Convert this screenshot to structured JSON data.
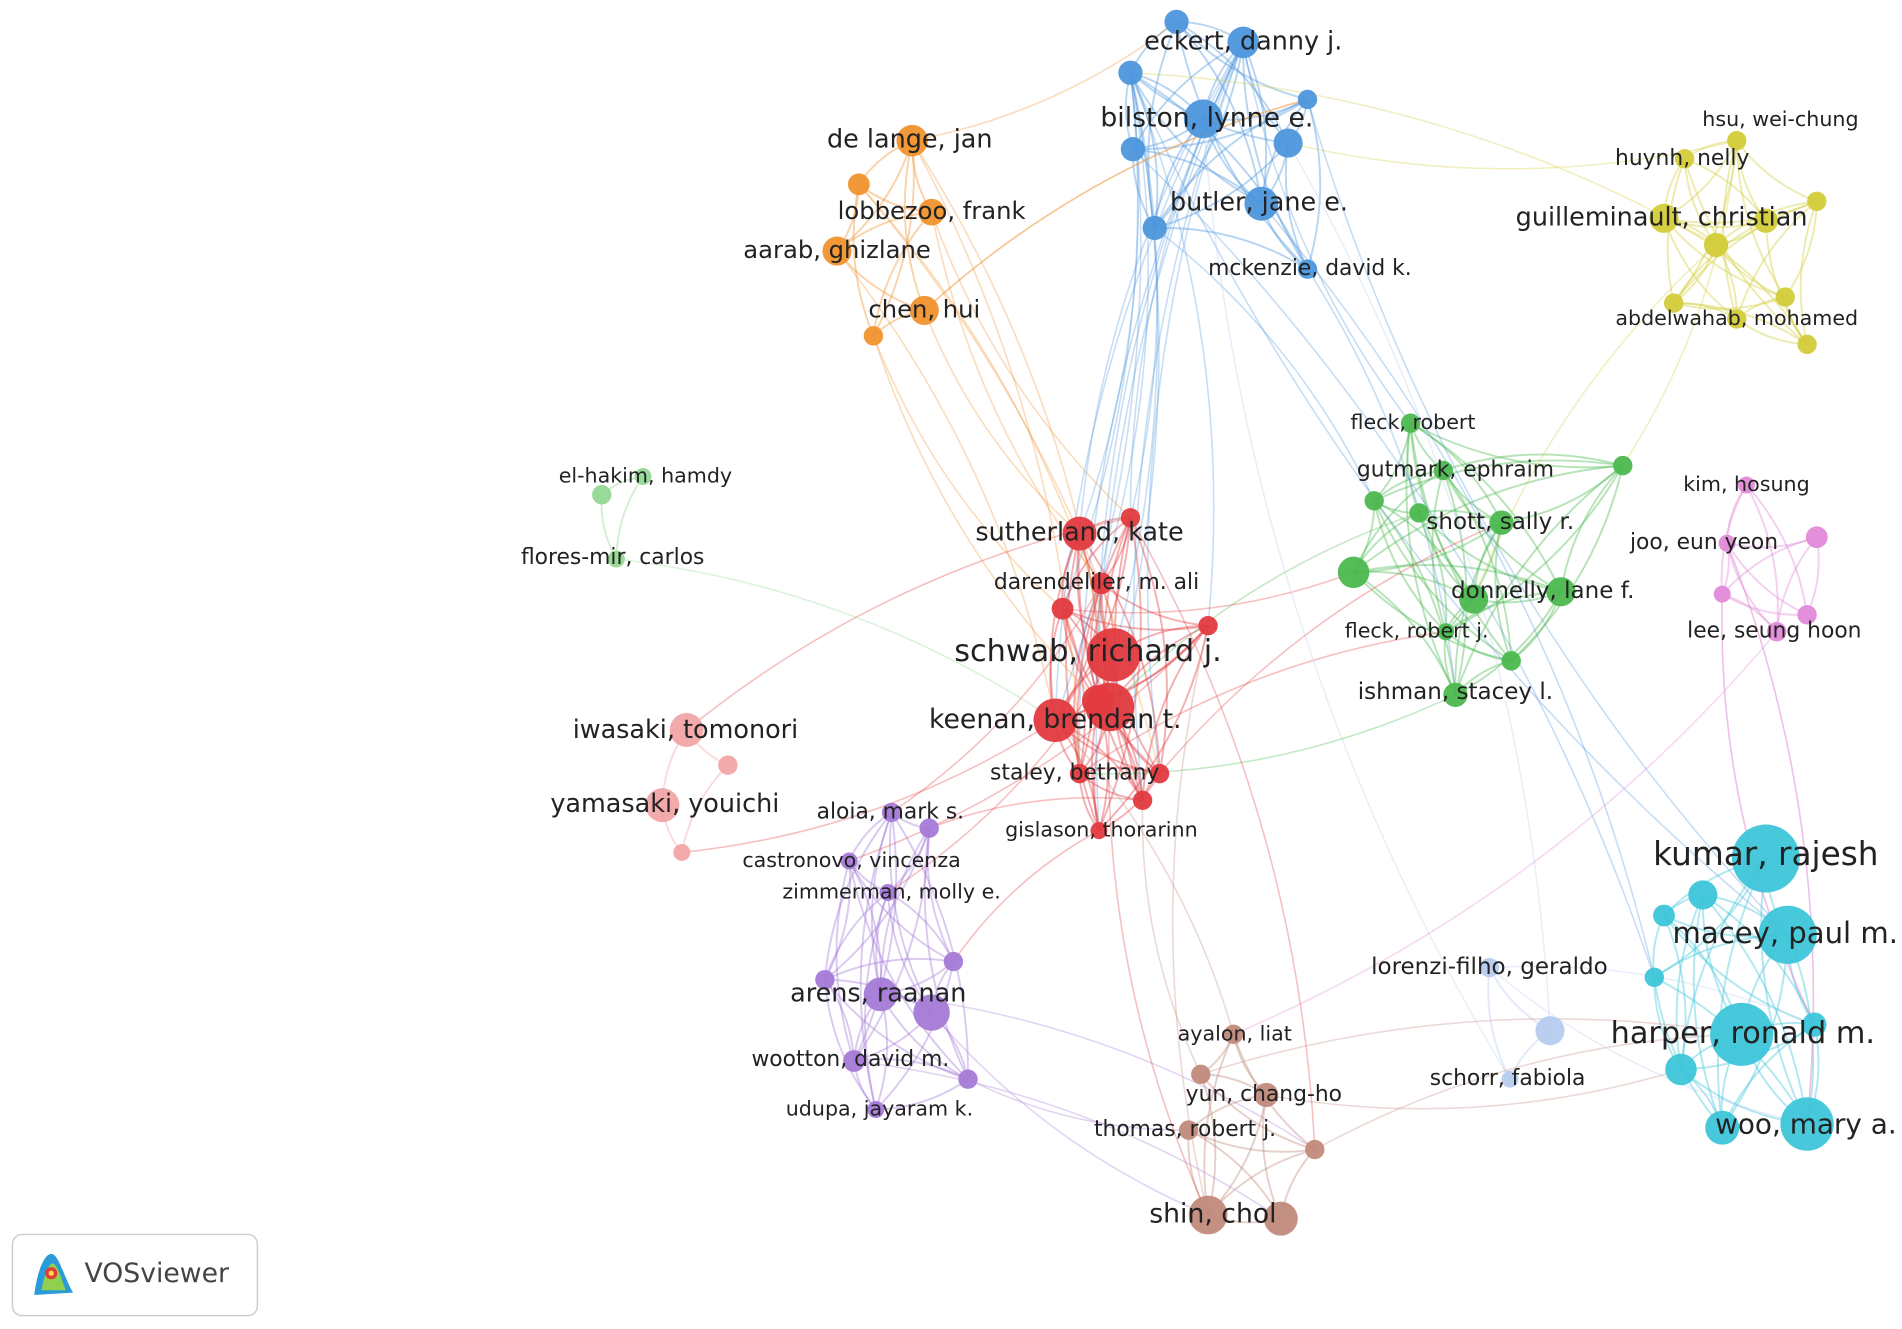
{
  "nodes": [
    {
      "label": "eckert, danny j."
    },
    {
      "label": "bilston, lynne e."
    },
    {
      "label": "butler, jane e."
    },
    {
      "label": "mckenzie, david k."
    },
    {
      "label": "de lange, jan"
    },
    {
      "label": "lobbezoo, frank"
    },
    {
      "label": "aarab, ghizlane"
    },
    {
      "label": "chen, hui"
    },
    {
      "label": "hsu, wei-chung"
    },
    {
      "label": "huynh, nelly"
    },
    {
      "label": "guilleminault, christian"
    },
    {
      "label": "abdelwahab, mohamed"
    },
    {
      "label": "fleck, robert"
    },
    {
      "label": "gutmark, ephraim"
    },
    {
      "label": "shott, sally r."
    },
    {
      "label": "donnelly, lane f."
    },
    {
      "label": "fleck, robert j."
    },
    {
      "label": "ishman, stacey l."
    },
    {
      "label": "el-hakim, hamdy"
    },
    {
      "label": "flores-mir, carlos"
    },
    {
      "label": "kim, hosung"
    },
    {
      "label": "joo, eun yeon"
    },
    {
      "label": "lee, seung hoon"
    },
    {
      "label": "sutherland, kate"
    },
    {
      "label": "darendeliler, m. ali"
    },
    {
      "label": "schwab, richard j."
    },
    {
      "label": "keenan, brendan t."
    },
    {
      "label": "staley, bethany"
    },
    {
      "label": "gislason, thorarinn"
    },
    {
      "label": "iwasaki, tomonori"
    },
    {
      "label": "yamasaki, youichi"
    },
    {
      "label": "aloia, mark s."
    },
    {
      "label": "castronovo, vincenza"
    },
    {
      "label": "zimmerman, molly e."
    },
    {
      "label": "arens, raanan"
    },
    {
      "label": "wootton, david m."
    },
    {
      "label": "udupa, jayaram k."
    },
    {
      "label": "ayalon, liat"
    },
    {
      "label": "yun, chang-ho"
    },
    {
      "label": "thomas, robert j."
    },
    {
      "label": "shin, chol"
    },
    {
      "label": "lorenzi-filho, geraldo"
    },
    {
      "label": "schorr, fabiola"
    },
    {
      "label": "kumar, rajesh"
    },
    {
      "label": "macey, paul m."
    },
    {
      "label": "harper, ronald m."
    },
    {
      "label": "woo, mary a."
    }
  ],
  "logo": "VOSviewer"
}
